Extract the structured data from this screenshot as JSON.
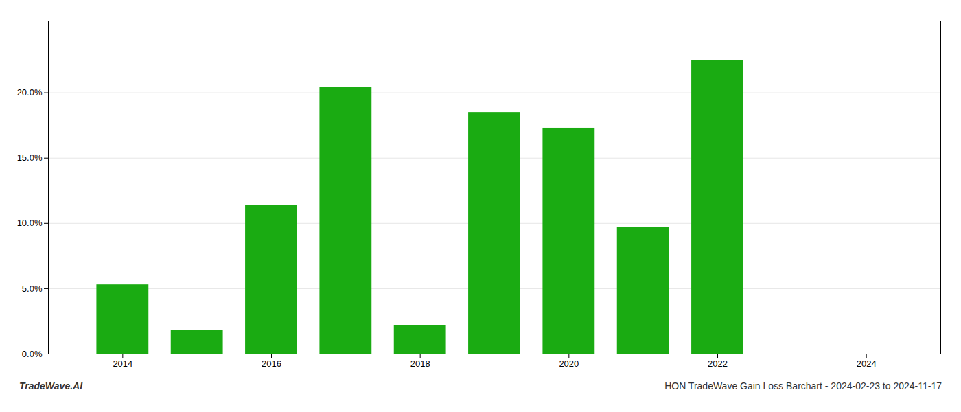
{
  "chart_data": {
    "type": "bar",
    "x": [
      2014,
      2015,
      2016,
      2017,
      2018,
      2019,
      2020,
      2021,
      2022
    ],
    "values": [
      0.053,
      0.018,
      0.114,
      0.204,
      0.022,
      0.185,
      0.173,
      0.097,
      0.225
    ],
    "color": "#1aab12",
    "xlim": [
      2013.0,
      2025.0
    ],
    "xticks": [
      2014,
      2016,
      2018,
      2020,
      2022,
      2024
    ],
    "ylim": [
      0,
      0.255
    ],
    "yticks": [
      {
        "value": 0.0,
        "label": "0.0%"
      },
      {
        "value": 0.05,
        "label": "5.0%"
      },
      {
        "value": 0.1,
        "label": "10.0%"
      },
      {
        "value": 0.15,
        "label": "15.0%"
      },
      {
        "value": 0.2,
        "label": "20.0%"
      }
    ],
    "grid": true,
    "annotations": [
      "TradeWave.AI",
      "HON TradeWave Gain Loss Barchart - 2024-02-23 to 2024-11-17"
    ]
  }
}
